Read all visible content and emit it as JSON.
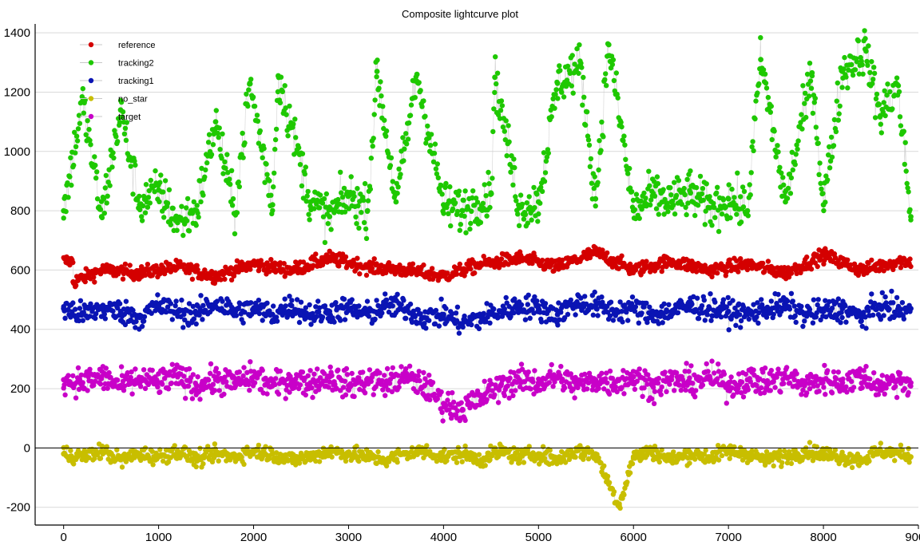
{
  "chart_data": {
    "type": "scatter",
    "title": "Composite lightcurve plot",
    "xlabel": "",
    "ylabel": "",
    "xlim": [
      -300,
      9000
    ],
    "ylim": [
      -260,
      1430
    ],
    "x_ticks": [
      0,
      1000,
      2000,
      3000,
      4000,
      5000,
      6000,
      7000,
      8000,
      9000
    ],
    "y_ticks": [
      -200,
      0,
      200,
      400,
      600,
      800,
      1000,
      1200,
      1400
    ],
    "grid": true,
    "zero_line": true,
    "legend_position": "top-left",
    "x_range_of_points": [
      0,
      8920
    ],
    "series": [
      {
        "name": "reference",
        "color": "#d40000",
        "values": [
          [
            100,
            560
          ],
          [
            400,
            600
          ],
          [
            800,
            590
          ],
          [
            1200,
            610
          ],
          [
            1600,
            580
          ],
          [
            2000,
            620
          ],
          [
            2400,
            600
          ],
          [
            2800,
            640
          ],
          [
            3200,
            610
          ],
          [
            3600,
            600
          ],
          [
            4000,
            580
          ],
          [
            4400,
            620
          ],
          [
            4800,
            640
          ],
          [
            5200,
            610
          ],
          [
            5600,
            660
          ],
          [
            6000,
            600
          ],
          [
            6400,
            630
          ],
          [
            6800,
            600
          ],
          [
            7200,
            620
          ],
          [
            7600,
            590
          ],
          [
            8000,
            650
          ],
          [
            8400,
            600
          ],
          [
            8800,
            630
          ]
        ]
      },
      {
        "name": "tracking2",
        "color": "#1ec800",
        "values": [
          [
            0,
            800
          ],
          [
            200,
            1170
          ],
          [
            400,
            780
          ],
          [
            600,
            1140
          ],
          [
            800,
            820
          ],
          [
            1000,
            870
          ],
          [
            1200,
            760
          ],
          [
            1400,
            800
          ],
          [
            1600,
            1100
          ],
          [
            1800,
            790
          ],
          [
            1960,
            1230
          ],
          [
            2200,
            820
          ],
          [
            2260,
            1255
          ],
          [
            2600,
            830
          ],
          [
            2800,
            780
          ],
          [
            3000,
            850
          ],
          [
            3200,
            800
          ],
          [
            3300,
            1270
          ],
          [
            3500,
            830
          ],
          [
            3720,
            1260
          ],
          [
            4000,
            820
          ],
          [
            4200,
            800
          ],
          [
            4500,
            860
          ],
          [
            4540,
            1250
          ],
          [
            4800,
            810
          ],
          [
            5000,
            830
          ],
          [
            5200,
            1230
          ],
          [
            5440,
            1290
          ],
          [
            5600,
            840
          ],
          [
            5740,
            1360
          ],
          [
            6000,
            800
          ],
          [
            6200,
            850
          ],
          [
            6400,
            830
          ],
          [
            6600,
            860
          ],
          [
            6800,
            810
          ],
          [
            7000,
            840
          ],
          [
            7200,
            800
          ],
          [
            7340,
            1310
          ],
          [
            7600,
            830
          ],
          [
            7880,
            1265
          ],
          [
            8000,
            820
          ],
          [
            8200,
            1270
          ],
          [
            8440,
            1345
          ],
          [
            8600,
            1120
          ],
          [
            8780,
            1225
          ],
          [
            8920,
            780
          ]
        ]
      },
      {
        "name": "tracking1",
        "color": "#0a14b4",
        "values": [
          [
            0,
            470
          ],
          [
            200,
            450
          ],
          [
            400,
            470
          ],
          [
            600,
            460
          ],
          [
            800,
            440
          ],
          [
            1000,
            480
          ],
          [
            1200,
            460
          ],
          [
            1400,
            450
          ],
          [
            1600,
            490
          ],
          [
            1800,
            460
          ],
          [
            2000,
            470
          ],
          [
            2200,
            450
          ],
          [
            2400,
            480
          ],
          [
            2600,
            450
          ],
          [
            2800,
            460
          ],
          [
            3000,
            470
          ],
          [
            3200,
            450
          ],
          [
            3400,
            480
          ],
          [
            3600,
            470
          ],
          [
            3800,
            440
          ],
          [
            4000,
            450
          ],
          [
            4200,
            420
          ],
          [
            4400,
            440
          ],
          [
            4600,
            460
          ],
          [
            4800,
            480
          ],
          [
            5000,
            470
          ],
          [
            5200,
            450
          ],
          [
            5400,
            490
          ],
          [
            5600,
            480
          ],
          [
            5800,
            460
          ],
          [
            6000,
            470
          ],
          [
            6200,
            450
          ],
          [
            6400,
            460
          ],
          [
            6600,
            480
          ],
          [
            6800,
            470
          ],
          [
            7000,
            460
          ],
          [
            7200,
            450
          ],
          [
            7400,
            470
          ],
          [
            7600,
            480
          ],
          [
            7800,
            450
          ],
          [
            8000,
            460
          ],
          [
            8200,
            470
          ],
          [
            8400,
            440
          ],
          [
            8600,
            480
          ],
          [
            8800,
            460
          ],
          [
            8920,
            470
          ]
        ]
      },
      {
        "name": "no_star",
        "color": "#c8be00",
        "values": [
          [
            0,
            -20
          ],
          [
            200,
            -30
          ],
          [
            400,
            -10
          ],
          [
            600,
            -40
          ],
          [
            800,
            -20
          ],
          [
            1000,
            -30
          ],
          [
            1200,
            -10
          ],
          [
            1400,
            -40
          ],
          [
            1600,
            -20
          ],
          [
            1800,
            -30
          ],
          [
            2000,
            -10
          ],
          [
            2200,
            -20
          ],
          [
            2400,
            -40
          ],
          [
            2600,
            -30
          ],
          [
            2800,
            -10
          ],
          [
            3000,
            -20
          ],
          [
            3200,
            -30
          ],
          [
            3400,
            -40
          ],
          [
            3600,
            -20
          ],
          [
            3800,
            -10
          ],
          [
            4000,
            -30
          ],
          [
            4200,
            -20
          ],
          [
            4400,
            -40
          ],
          [
            4600,
            -10
          ],
          [
            4800,
            -30
          ],
          [
            5000,
            -20
          ],
          [
            5200,
            -40
          ],
          [
            5400,
            -10
          ],
          [
            5600,
            -20
          ],
          [
            5850,
            -195
          ],
          [
            6000,
            -30
          ],
          [
            6200,
            -10
          ],
          [
            6400,
            -40
          ],
          [
            6600,
            -20
          ],
          [
            6800,
            -30
          ],
          [
            7000,
            -10
          ],
          [
            7200,
            -20
          ],
          [
            7400,
            -40
          ],
          [
            7600,
            -30
          ],
          [
            7800,
            -10
          ],
          [
            8000,
            -20
          ],
          [
            8200,
            -30
          ],
          [
            8400,
            -40
          ],
          [
            8600,
            -10
          ],
          [
            8800,
            -20
          ],
          [
            8920,
            -30
          ]
        ]
      },
      {
        "name": "target",
        "color": "#c800c8",
        "values": [
          [
            0,
            230
          ],
          [
            200,
            220
          ],
          [
            400,
            240
          ],
          [
            600,
            210
          ],
          [
            800,
            230
          ],
          [
            1000,
            220
          ],
          [
            1200,
            240
          ],
          [
            1400,
            210
          ],
          [
            1600,
            230
          ],
          [
            1800,
            220
          ],
          [
            2000,
            240
          ],
          [
            2200,
            210
          ],
          [
            2400,
            230
          ],
          [
            2600,
            220
          ],
          [
            2800,
            240
          ],
          [
            3000,
            210
          ],
          [
            3200,
            230
          ],
          [
            3400,
            220
          ],
          [
            3600,
            240
          ],
          [
            3800,
            210
          ],
          [
            4000,
            150
          ],
          [
            4200,
            130
          ],
          [
            4400,
            170
          ],
          [
            4600,
            210
          ],
          [
            4800,
            230
          ],
          [
            5000,
            220
          ],
          [
            5200,
            240
          ],
          [
            5400,
            210
          ],
          [
            5600,
            230
          ],
          [
            5800,
            220
          ],
          [
            6000,
            240
          ],
          [
            6200,
            210
          ],
          [
            6400,
            230
          ],
          [
            6600,
            220
          ],
          [
            6800,
            240
          ],
          [
            7000,
            210
          ],
          [
            7200,
            230
          ],
          [
            7400,
            220
          ],
          [
            7600,
            240
          ],
          [
            7800,
            210
          ],
          [
            8000,
            230
          ],
          [
            8200,
            220
          ],
          [
            8400,
            240
          ],
          [
            8600,
            210
          ],
          [
            8800,
            230
          ],
          [
            8920,
            220
          ]
        ]
      }
    ]
  }
}
